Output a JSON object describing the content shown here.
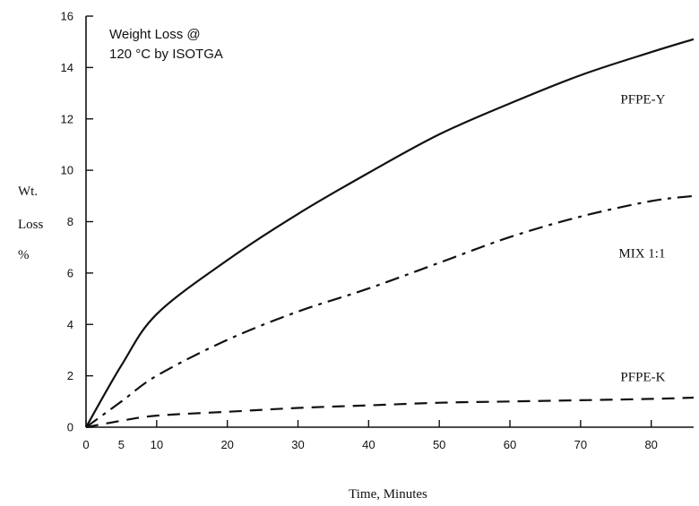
{
  "chart_data": {
    "type": "line",
    "annotation_lines": [
      "Weight Loss @",
      "120 °C by ISOTGA"
    ],
    "xlabel": "Time, Minutes",
    "ylabel_lines": [
      "Wt.",
      "Loss",
      "%"
    ],
    "xlim": [
      0,
      86
    ],
    "ylim": [
      0,
      16
    ],
    "xticks": [
      0,
      10,
      20,
      30,
      40,
      50,
      60,
      70,
      80
    ],
    "xtick_labels": [
      "0",
      "5",
      "10",
      "20",
      "30",
      "40",
      "50",
      "60",
      "70",
      "80"
    ],
    "xtick_label_values": [
      0,
      5,
      10,
      20,
      30,
      40,
      50,
      60,
      70,
      80
    ],
    "yticks": [
      0,
      2,
      4,
      6,
      8,
      10,
      12,
      14,
      16
    ],
    "ytick_labels": [
      "0",
      "2",
      "4",
      "6",
      "8",
      "10",
      "12",
      "14",
      "16"
    ],
    "series": [
      {
        "name": "PFPE-Y",
        "style": "solid",
        "label_anchor": [
          82,
          12.6
        ],
        "x": [
          0,
          5,
          10,
          20,
          30,
          40,
          50,
          60,
          70,
          80,
          86
        ],
        "y": [
          0,
          2.4,
          4.4,
          6.5,
          8.3,
          9.9,
          11.4,
          12.6,
          13.7,
          14.6,
          15.1
        ]
      },
      {
        "name": "MIX 1:1",
        "style": "dashdot",
        "label_anchor": [
          82,
          6.6
        ],
        "x": [
          0,
          5,
          10,
          20,
          30,
          40,
          50,
          60,
          70,
          80,
          86
        ],
        "y": [
          0,
          1.0,
          2.0,
          3.4,
          4.5,
          5.4,
          6.4,
          7.4,
          8.2,
          8.8,
          9.0
        ]
      },
      {
        "name": "PFPE-K",
        "style": "dashed",
        "label_anchor": [
          82,
          1.8
        ],
        "x": [
          0,
          5,
          10,
          20,
          30,
          40,
          50,
          60,
          70,
          80,
          86
        ],
        "y": [
          0,
          0.25,
          0.45,
          0.6,
          0.75,
          0.85,
          0.95,
          1.0,
          1.05,
          1.1,
          1.15
        ]
      }
    ],
    "grid": false
  }
}
